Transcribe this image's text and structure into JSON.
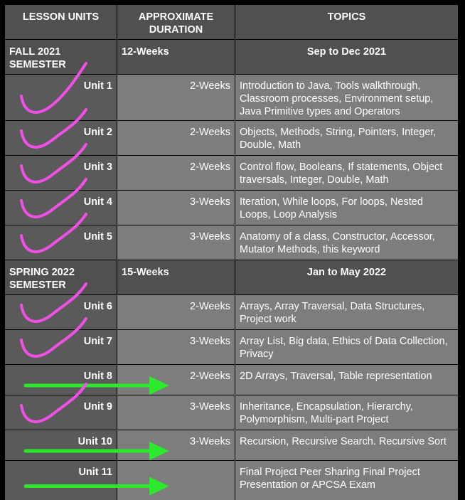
{
  "headers": [
    "LESSON UNITS",
    "APPROXIMATE DURATION",
    "TOPICS"
  ],
  "sections": [
    {
      "name": "FALL 2021 SEMESTER",
      "duration": "12-Weeks",
      "dates": "Sep to Dec 2021",
      "units": [
        {
          "unit": "Unit 1",
          "duration": "2-Weeks",
          "topics": "Introduction to Java, Tools walkthrough, Classroom processes, Environment setup, Java Primitive types and Operators",
          "mark": "check"
        },
        {
          "unit": "Unit 2",
          "duration": "2-Weeks",
          "topics": "Objects, Methods, String, Pointers, Integer, Double, Math",
          "mark": "check"
        },
        {
          "unit": "Unit 3",
          "duration": "2-Weeks",
          "topics": "Control flow, Booleans, If statements, Object traversals, Integer, Double, Math",
          "mark": "check"
        },
        {
          "unit": "Unit 4",
          "duration": "3-Weeks",
          "topics": "Iteration, While loops, For loops, Nested Loops, Loop Analysis",
          "mark": "check"
        },
        {
          "unit": "Unit 5",
          "duration": "3-Weeks",
          "topics": "Anatomy of a class, Constructor, Accessor, Mutator Methods, this keyword",
          "mark": "check"
        }
      ]
    },
    {
      "name": "SPRING 2022 SEMESTER",
      "duration": "15-Weeks",
      "dates": "Jan to May 2022",
      "units": [
        {
          "unit": "Unit 6",
          "duration": "2-Weeks",
          "topics": "Arrays, Array Traversal, Data Structures, Project work",
          "mark": "check"
        },
        {
          "unit": "Unit 7",
          "duration": "3-Weeks",
          "topics": "Array List, Big data, Ethics of Data Collection, Privacy",
          "mark": "check"
        },
        {
          "unit": "Unit 8",
          "duration": "2-Weeks",
          "topics": "2D Arrays, Traversal, Table representation",
          "mark": "arrow"
        },
        {
          "unit": "Unit 9",
          "duration": "3-Weeks",
          "topics": "Inheritance, Encapsulation, Hierarchy, Polymorphism, Multi-part Project",
          "mark": "check"
        },
        {
          "unit": "Unit 10",
          "duration": "3-Weeks",
          "topics": "Recursion, Recursive Search. Recursive Sort",
          "mark": "arrow"
        },
        {
          "unit": "Unit 11",
          "duration": "",
          "topics": "Final Project Peer Sharing Final Project Presentation or APCSA Exam",
          "mark": "arrow"
        }
      ]
    }
  ],
  "colors": {
    "check": "#f050e6",
    "arrow": "#2bea2b",
    "header_bg": "#505050",
    "unit_bg": "#5a5a5a",
    "cell_bg": "#7d7d7d",
    "grid": "#000000"
  }
}
